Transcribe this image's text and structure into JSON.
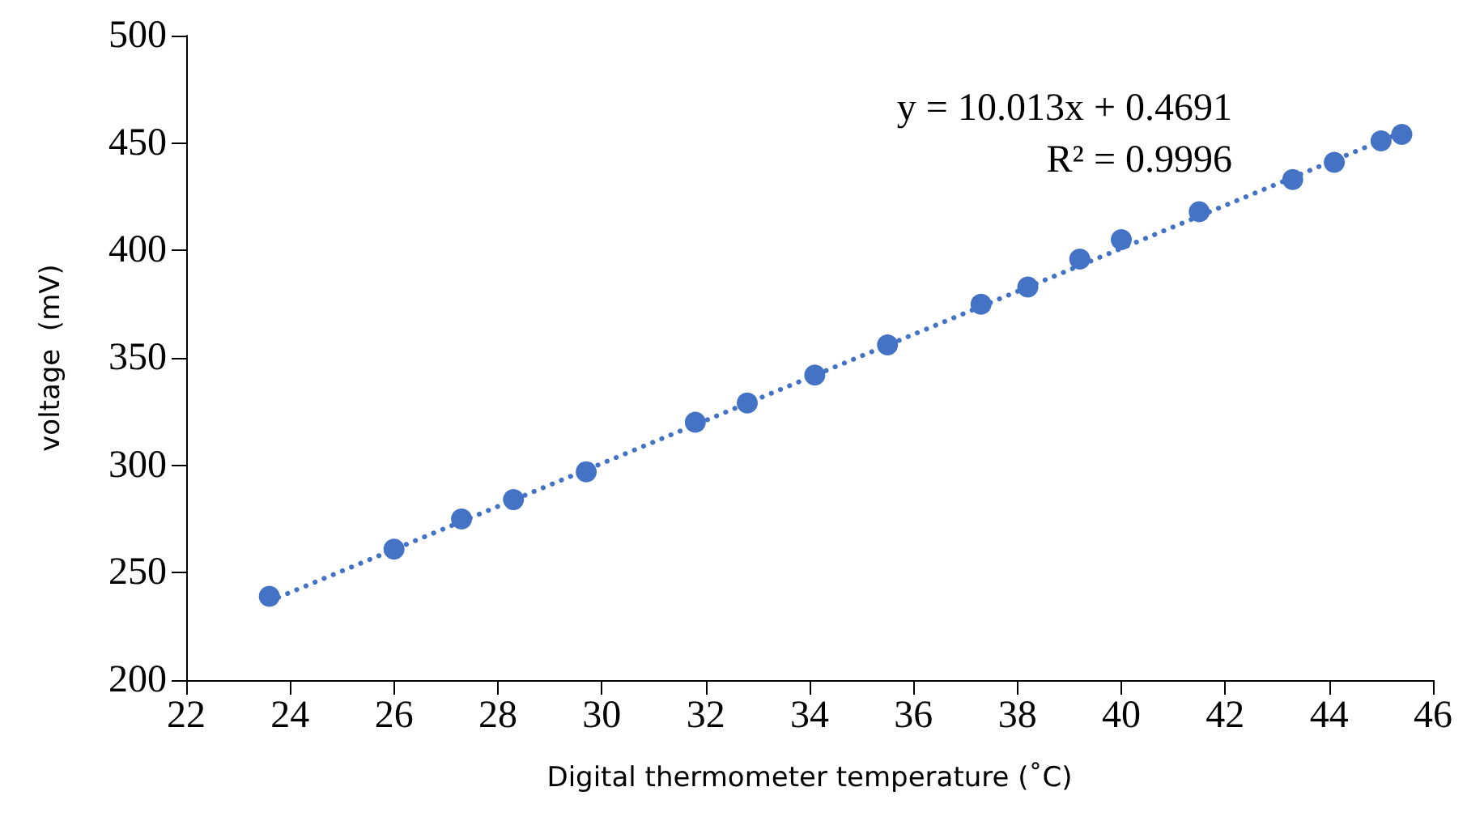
{
  "chart_data": {
    "type": "scatter",
    "xlabel": "Digital thermometer temperature (˚C)",
    "ylabel": "voltage  (mV)",
    "annotations": [
      "y = 10.013x + 0.4691",
      "R² = 0.9996"
    ],
    "xlim": [
      22,
      46
    ],
    "xticks": [
      22,
      24,
      26,
      28,
      30,
      32,
      34,
      36,
      38,
      40,
      42,
      44,
      46
    ],
    "ylim": [
      200,
      500
    ],
    "yticks": [
      200,
      250,
      300,
      350,
      400,
      450,
      500
    ],
    "marker": "circle",
    "series": [
      {
        "color": "#4472c4",
        "x": [
          23.6,
          26,
          27.3,
          28.3,
          29.7,
          31.8,
          32.8,
          34.1,
          35.5,
          37.3,
          38.2,
          39.2,
          40,
          41.5,
          43.3,
          44.1,
          45,
          45.4
        ],
        "values": [
          239,
          261,
          275,
          284,
          297,
          320,
          329,
          342,
          356,
          375,
          383,
          396,
          405,
          418,
          433,
          441,
          451,
          454
        ]
      },
      {
        "type": "line",
        "color": "#4472c4",
        "line_style": "dotted",
        "marker": "none",
        "x": [
          23.6,
          45.4
        ],
        "values": [
          236.8,
          455.0
        ]
      }
    ]
  }
}
